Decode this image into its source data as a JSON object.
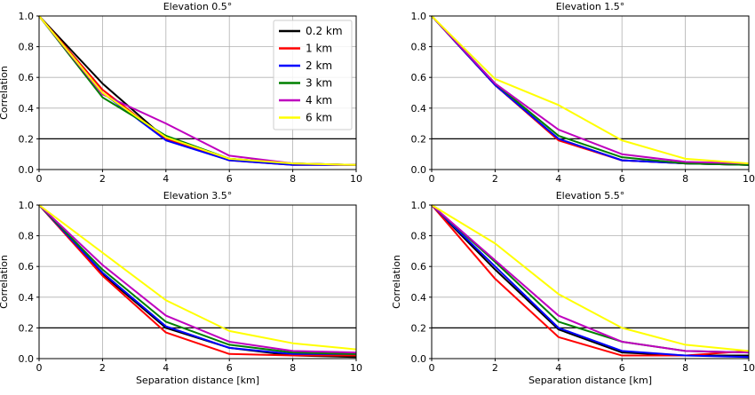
{
  "chart_data": [
    {
      "type": "line",
      "title": "Elevation 0.5°",
      "xlabel": "",
      "ylabel": "Correlation",
      "xlim": [
        0,
        10
      ],
      "ylim": [
        0,
        1
      ],
      "xticks": [
        0,
        2,
        4,
        6,
        8,
        10
      ],
      "yticks": [
        0.0,
        0.2,
        0.4,
        0.6,
        0.8,
        1.0
      ],
      "grid": true,
      "hline": 0.2,
      "legend": "top-right",
      "x": [
        0,
        2,
        4,
        6,
        8,
        10
      ],
      "series": [
        {
          "name": "0.2 km",
          "color": "#000000",
          "values": [
            1.0,
            0.56,
            0.2,
            0.07,
            0.04,
            0.03
          ]
        },
        {
          "name": "1 km",
          "color": "#ff0000",
          "values": [
            1.0,
            0.52,
            0.2,
            0.06,
            0.03,
            0.03
          ]
        },
        {
          "name": "2 km",
          "color": "#0000ff",
          "values": [
            1.0,
            0.5,
            0.19,
            0.06,
            0.03,
            0.03
          ]
        },
        {
          "name": "3 km",
          "color": "#008000",
          "values": [
            1.0,
            0.47,
            0.22,
            0.07,
            0.04,
            0.03
          ]
        },
        {
          "name": "4 km",
          "color": "#bf00bf",
          "values": [
            1.0,
            0.49,
            0.3,
            0.09,
            0.04,
            0.03
          ]
        },
        {
          "name": "6 km",
          "color": "#ffff00",
          "values": [
            1.0,
            0.5,
            0.21,
            0.07,
            0.04,
            0.03
          ]
        }
      ]
    },
    {
      "type": "line",
      "title": "Elevation 1.5°",
      "xlabel": "",
      "ylabel": "",
      "xlim": [
        0,
        10
      ],
      "ylim": [
        0,
        1
      ],
      "xticks": [
        0,
        2,
        4,
        6,
        8,
        10
      ],
      "yticks": [
        0.0,
        0.2,
        0.4,
        0.6,
        0.8,
        1.0
      ],
      "grid": true,
      "hline": 0.2,
      "x": [
        0,
        2,
        4,
        6,
        8,
        10
      ],
      "series": [
        {
          "color": "#000000",
          "values": [
            1.0,
            0.55,
            0.2,
            0.06,
            0.04,
            0.03
          ]
        },
        {
          "color": "#ff0000",
          "values": [
            1.0,
            0.55,
            0.19,
            0.06,
            0.04,
            0.03
          ]
        },
        {
          "color": "#0000ff",
          "values": [
            1.0,
            0.55,
            0.2,
            0.06,
            0.04,
            0.03
          ]
        },
        {
          "color": "#008000",
          "values": [
            1.0,
            0.56,
            0.22,
            0.08,
            0.04,
            0.03
          ]
        },
        {
          "color": "#bf00bf",
          "values": [
            1.0,
            0.56,
            0.26,
            0.1,
            0.05,
            0.04
          ]
        },
        {
          "color": "#ffff00",
          "values": [
            1.0,
            0.59,
            0.42,
            0.19,
            0.07,
            0.04
          ]
        }
      ]
    },
    {
      "type": "line",
      "title": "Elevation 3.5°",
      "xlabel": "Separation distance [km]",
      "ylabel": "Correlation",
      "xlim": [
        0,
        10
      ],
      "ylim": [
        0,
        1
      ],
      "xticks": [
        0,
        2,
        4,
        6,
        8,
        10
      ],
      "yticks": [
        0.0,
        0.2,
        0.4,
        0.6,
        0.8,
        1.0
      ],
      "grid": true,
      "hline": 0.2,
      "x": [
        0,
        2,
        4,
        6,
        8,
        10
      ],
      "series": [
        {
          "color": "#000000",
          "values": [
            1.0,
            0.55,
            0.2,
            0.07,
            0.02,
            0.01
          ]
        },
        {
          "color": "#ff0000",
          "values": [
            1.0,
            0.54,
            0.17,
            0.03,
            0.02,
            0.02
          ]
        },
        {
          "color": "#0000ff",
          "values": [
            1.0,
            0.56,
            0.21,
            0.07,
            0.03,
            0.03
          ]
        },
        {
          "color": "#008000",
          "values": [
            1.0,
            0.58,
            0.24,
            0.09,
            0.04,
            0.03
          ]
        },
        {
          "color": "#bf00bf",
          "values": [
            1.0,
            0.61,
            0.28,
            0.11,
            0.05,
            0.04
          ]
        },
        {
          "color": "#ffff00",
          "values": [
            1.0,
            0.69,
            0.38,
            0.18,
            0.1,
            0.06
          ]
        }
      ]
    },
    {
      "type": "line",
      "title": "Elevation 5.5°",
      "xlabel": "Separation distance [km]",
      "ylabel": "Correlation",
      "xlim": [
        0,
        10
      ],
      "ylim": [
        0,
        1
      ],
      "xticks": [
        0,
        2,
        4,
        6,
        8,
        10
      ],
      "yticks": [
        0.0,
        0.2,
        0.4,
        0.6,
        0.8,
        1.0
      ],
      "grid": true,
      "hline": 0.2,
      "x": [
        0,
        2,
        4,
        6,
        8,
        10
      ],
      "series": [
        {
          "color": "#000000",
          "values": [
            1.0,
            0.58,
            0.19,
            0.04,
            0.02,
            0.02
          ]
        },
        {
          "color": "#ff0000",
          "values": [
            1.0,
            0.52,
            0.14,
            0.02,
            0.02,
            0.05
          ]
        },
        {
          "color": "#0000ff",
          "values": [
            1.0,
            0.6,
            0.2,
            0.05,
            0.02,
            0.01
          ]
        },
        {
          "color": "#008000",
          "values": [
            1.0,
            0.63,
            0.24,
            0.11,
            0.05,
            0.04
          ]
        },
        {
          "color": "#bf00bf",
          "values": [
            1.0,
            0.64,
            0.28,
            0.11,
            0.05,
            0.04
          ]
        },
        {
          "color": "#ffff00",
          "values": [
            1.0,
            0.75,
            0.42,
            0.2,
            0.09,
            0.05
          ]
        }
      ]
    }
  ]
}
